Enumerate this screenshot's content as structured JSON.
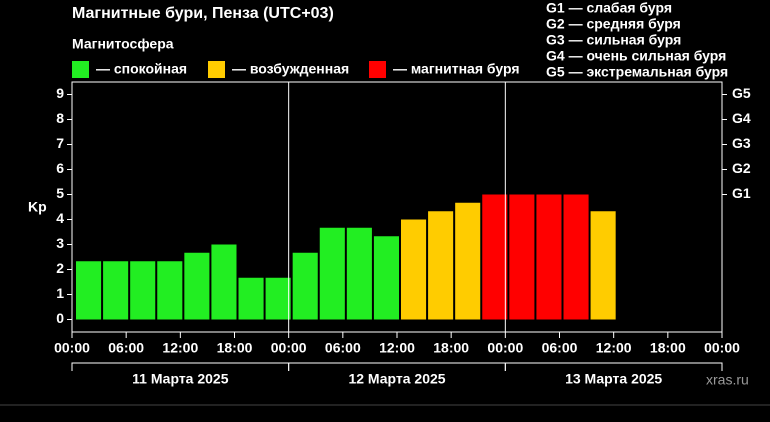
{
  "chart_data": {
    "type": "bar",
    "title": "Магнитные бури, Пенза (UTC+03)",
    "legend_title": "Магнитосфера",
    "legend": [
      {
        "name": "— спокойная",
        "color": "#22ee22"
      },
      {
        "name": "— возбужденная",
        "color": "#ffcc00"
      },
      {
        "name": "— магнитная буря",
        "color": "#ff0000"
      }
    ],
    "storm_levels": [
      "G1 — слабая буря",
      "G2 — средняя буря",
      "G3 — сильная буря",
      "G4 — очень сильная буря",
      "G5 — экстремальная буря"
    ],
    "ylabel": "Kp",
    "x": [
      0,
      3,
      6,
      9,
      12,
      15,
      18,
      21,
      24,
      27,
      30,
      33,
      36,
      39,
      42,
      45,
      48,
      51,
      54,
      57
    ],
    "bar_width": 3,
    "values": [
      2.33,
      2.33,
      2.33,
      2.33,
      2.67,
      3,
      1.67,
      1.67,
      2.67,
      3.67,
      3.67,
      3.33,
      4,
      4.33,
      4.67,
      5,
      5,
      5,
      5,
      4.33
    ],
    "colors": [
      "#22ee22",
      "#22ee22",
      "#22ee22",
      "#22ee22",
      "#22ee22",
      "#22ee22",
      "#22ee22",
      "#22ee22",
      "#22ee22",
      "#22ee22",
      "#22ee22",
      "#22ee22",
      "#ffcc00",
      "#ffcc00",
      "#ffcc00",
      "#ff0000",
      "#ff0000",
      "#ff0000",
      "#ff0000",
      "#ffcc00"
    ],
    "xlim": [
      0,
      72
    ],
    "xticks": [
      {
        "value": 0,
        "label": "00:00"
      },
      {
        "value": 6,
        "label": "06:00"
      },
      {
        "value": 12,
        "label": "12:00"
      },
      {
        "value": 18,
        "label": "18:00"
      },
      {
        "value": 24,
        "label": "00:00"
      },
      {
        "value": 30,
        "label": "06:00"
      },
      {
        "value": 36,
        "label": "12:00"
      },
      {
        "value": 42,
        "label": "18:00"
      },
      {
        "value": 48,
        "label": "00:00"
      },
      {
        "value": 54,
        "label": "06:00"
      },
      {
        "value": 60,
        "label": "12:00"
      },
      {
        "value": 66,
        "label": "18:00"
      },
      {
        "value": 72,
        "label": "00:00"
      }
    ],
    "day_lines": [
      24,
      48
    ],
    "days": [
      "11 Марта 2025",
      "12 Марта 2025",
      "13 Марта 2025"
    ],
    "ylim": [
      -0.5,
      9.5
    ],
    "yticks": [
      0,
      1,
      2,
      3,
      4,
      5,
      6,
      7,
      8,
      9
    ],
    "y2lim": [
      -0.5,
      9.5
    ],
    "y2ticks": [
      {
        "value": 5,
        "label": "G1"
      },
      {
        "value": 6,
        "label": "G2"
      },
      {
        "value": 7,
        "label": "G3"
      },
      {
        "value": 8,
        "label": "G4"
      },
      {
        "value": 9,
        "label": "G5"
      }
    ],
    "watermark": "xras.ru"
  }
}
